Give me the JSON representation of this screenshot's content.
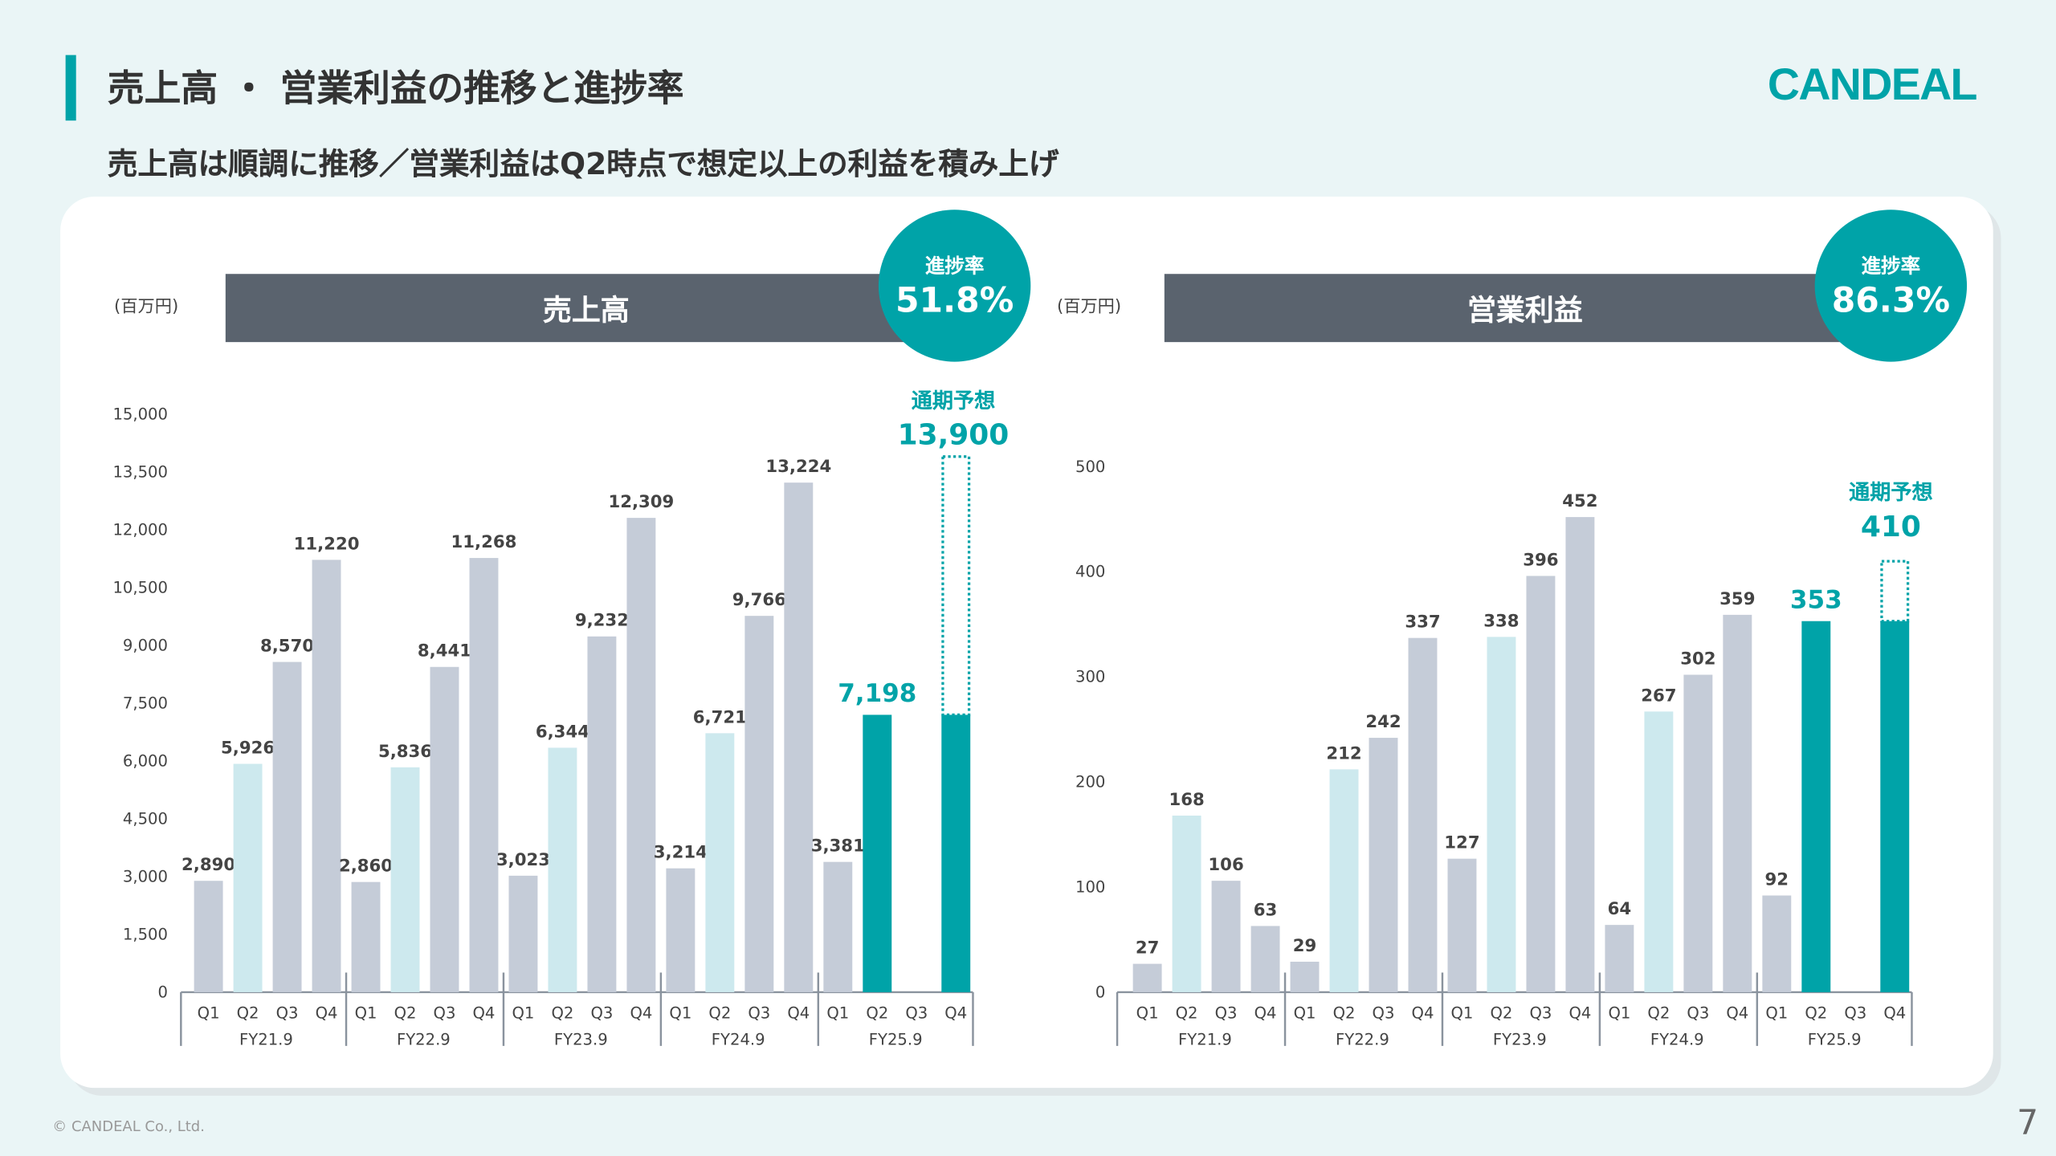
{
  "header": {
    "title": "売上高 ・ 営業利益の推移と進捗率",
    "subtitle": "売上高は順調に推移／営業利益はQ2時点で想定以上の利益を積み上げ",
    "logo": "CANDEAL"
  },
  "footer": {
    "copyright": "© CANDEAL Co., Ltd.",
    "page": "7"
  },
  "colors": {
    "accent": "#00a3a8",
    "past_bar": "#c5ccd8",
    "q2_bar": "#cde9ee",
    "current_bar": "#00a3a8",
    "header_bar": "#5a636e"
  },
  "charts": [
    {
      "unit": "(百万円)",
      "title": "売上高",
      "progress_label": "進捗率",
      "progress_value": "51.8%",
      "forecast_label": "通期予想",
      "forecast_value": "13,900"
    },
    {
      "unit": "(百万円)",
      "title": "営業利益",
      "progress_label": "進捗率",
      "progress_value": "86.3%",
      "forecast_label": "通期予想",
      "forecast_value": "410"
    }
  ],
  "chart_data": [
    {
      "type": "bar",
      "title": "売上高",
      "ylabel": "(百万円)",
      "ylim": [
        0,
        15000
      ],
      "yticks": [
        0,
        1500,
        3000,
        4500,
        6000,
        7500,
        9000,
        10500,
        12000,
        13500,
        15000
      ],
      "quarters": [
        "Q1",
        "Q2",
        "Q3",
        "Q4"
      ],
      "fiscal_years": [
        "FY21.9",
        "FY22.9",
        "FY23.9",
        "FY24.9",
        "FY25.9"
      ],
      "values": [
        [
          2890,
          5926,
          8570,
          11220
        ],
        [
          2860,
          5836,
          8441,
          11268
        ],
        [
          3023,
          6344,
          9232,
          12309
        ],
        [
          3214,
          6721,
          9766,
          13224
        ],
        [
          3381,
          7198,
          null,
          null
        ]
      ],
      "forecast": {
        "fiscal_year": "FY25.9",
        "quarter": "Q4",
        "value": 13900,
        "label": "通期予想"
      }
    },
    {
      "type": "bar",
      "title": "営業利益",
      "ylabel": "(百万円)",
      "ylim": [
        0,
        500
      ],
      "yticks": [
        0,
        100,
        200,
        300,
        400,
        500
      ],
      "quarters": [
        "Q1",
        "Q2",
        "Q3",
        "Q4"
      ],
      "fiscal_years": [
        "FY21.9",
        "FY22.9",
        "FY23.9",
        "FY24.9",
        "FY25.9"
      ],
      "values": [
        [
          27,
          168,
          106,
          63
        ],
        [
          29,
          212,
          242,
          337
        ],
        [
          127,
          338,
          396,
          452
        ],
        [
          64,
          267,
          302,
          359
        ],
        [
          92,
          353,
          null,
          null
        ]
      ],
      "forecast": {
        "fiscal_year": "FY25.9",
        "quarter": "Q4",
        "value": 410,
        "label": "通期予想"
      }
    }
  ]
}
